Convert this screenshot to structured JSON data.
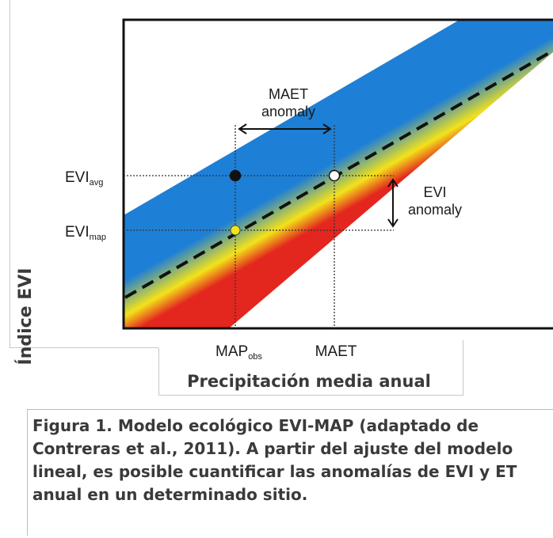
{
  "diagram": {
    "y_axis_label": "Índice EVI",
    "x_axis_label": "Precipitación media anual",
    "annotations": {
      "maet_anomaly": [
        "MAET",
        "anomaly"
      ],
      "evi_anomaly": [
        "EVI",
        "anomaly"
      ]
    },
    "y_ticks": [
      {
        "base": "EVI",
        "sub": "avg"
      },
      {
        "base": "EVI",
        "sub": "map"
      }
    ],
    "x_ticks": [
      {
        "base": "MAP",
        "sub": "obs"
      },
      {
        "base": "MAET",
        "sub": ""
      }
    ],
    "colors": {
      "band_top": "#1e7fd6",
      "band_mid": "#f3e21a",
      "band_bottom": "#e3261e",
      "dashed_line": "#111111",
      "point_avg": "#111111",
      "point_map": "#f2e51b",
      "point_maet": "#ffffff"
    }
  },
  "caption": {
    "lines": [
      "Figura 1. Modelo ecológico EVI-MAP (adaptado de",
      "Contreras et al., 2011). A partir del ajuste del modelo",
      "lineal, es posible cuantificar las anomalías de EVI y ET",
      "anual en un determinado sitio."
    ]
  }
}
